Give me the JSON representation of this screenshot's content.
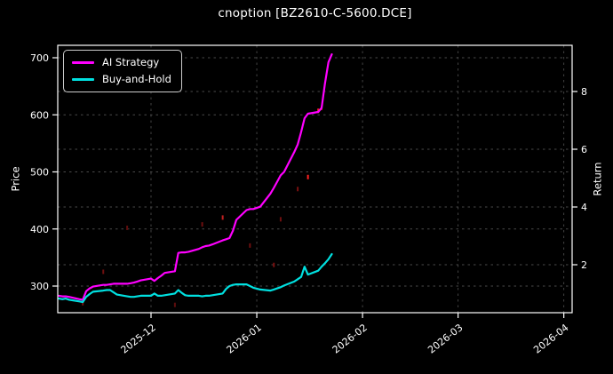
{
  "chart_data": {
    "type": "line",
    "title": "cnoption [BZ2610-C-5600.DCE]",
    "background": "#000000",
    "grid": true,
    "legend": {
      "position": "upper left",
      "entries": [
        {
          "label": "AI Strategy",
          "color": "#ff00ff"
        },
        {
          "label": "Buy-and-Hold",
          "color": "#00e0e0"
        }
      ]
    },
    "left_axis": {
      "label": "Price",
      "ticks": [
        300,
        400,
        500,
        600,
        700
      ],
      "approx_range": [
        253,
        722
      ]
    },
    "right_axis": {
      "label": "Return",
      "ticks": [
        2,
        4,
        6,
        8
      ],
      "approx_range": [
        0.35,
        9.7
      ]
    },
    "x_axis": {
      "ticks": [
        "2025-12",
        "2026-01",
        "2026-02",
        "2026-03",
        "2026-04"
      ],
      "approx_range": [
        "2025-11-03",
        "2026-04-03"
      ]
    },
    "dates": [
      "2025-11-04",
      "2025-11-05",
      "2025-11-06",
      "2025-11-07",
      "2025-11-10",
      "2025-11-11",
      "2025-11-12",
      "2025-11-13",
      "2025-11-14",
      "2025-11-17",
      "2025-11-18",
      "2025-11-19",
      "2025-11-20",
      "2025-11-21",
      "2025-11-24",
      "2025-11-25",
      "2025-11-26",
      "2025-11-27",
      "2025-11-28",
      "2025-12-01",
      "2025-12-02",
      "2025-12-03",
      "2025-12-04",
      "2025-12-05",
      "2025-12-08",
      "2025-12-09",
      "2025-12-10",
      "2025-12-11",
      "2025-12-12",
      "2025-12-15",
      "2025-12-16",
      "2025-12-17",
      "2025-12-18",
      "2025-12-19",
      "2025-12-22",
      "2025-12-23",
      "2025-12-24",
      "2025-12-25",
      "2025-12-26",
      "2025-12-29",
      "2025-12-30",
      "2025-12-31",
      "2026-01-02",
      "2026-01-05",
      "2026-01-06",
      "2026-01-07",
      "2026-01-08",
      "2026-01-09",
      "2026-01-12",
      "2026-01-13",
      "2026-01-14",
      "2026-01-15",
      "2026-01-16",
      "2026-01-19",
      "2026-01-20",
      "2026-01-21",
      "2026-01-22",
      "2026-01-23"
    ],
    "series": [
      {
        "name": "AI Strategy",
        "color": "#ff00ff",
        "axis": "price",
        "values": [
          283,
          282,
          282,
          281,
          277,
          276,
          291,
          296,
          299,
          302,
          302,
          303,
          304,
          304,
          304,
          305,
          306,
          308,
          310,
          313,
          309,
          314,
          318,
          323,
          326,
          358,
          359,
          359,
          360,
          365,
          368,
          370,
          371,
          373,
          380,
          382,
          384,
          397,
          416,
          433,
          435,
          435,
          439,
          462,
          472,
          483,
          494,
          500,
          535,
          548,
          570,
          594,
          602,
          605,
          612,
          655,
          692,
          706
        ]
      },
      {
        "name": "Buy-and-Hold",
        "color": "#00e0e0",
        "axis": "price",
        "values": [
          278,
          277,
          278,
          276,
          273,
          272,
          281,
          286,
          290,
          292,
          293,
          293,
          289,
          285,
          282,
          281,
          281,
          282,
          283,
          283,
          287,
          283,
          283,
          284,
          287,
          293,
          288,
          284,
          283,
          283,
          282,
          283,
          283,
          284,
          287,
          295,
          300,
          302,
          303,
          303,
          300,
          297,
          294,
          292,
          294,
          296,
          298,
          301,
          308,
          312,
          316,
          334,
          320,
          327,
          334,
          340,
          347,
          356
        ]
      }
    ],
    "markers": [
      {
        "date": "2025-11-11",
        "price": 270,
        "color": "#7a1010"
      },
      {
        "date": "2025-11-17",
        "price": 325,
        "color": "#6e0f0f"
      },
      {
        "date": "2025-11-24",
        "price": 402,
        "color": "#5f0d0d"
      },
      {
        "date": "2025-12-08",
        "price": 267,
        "color": "#5f0d0d"
      },
      {
        "date": "2025-12-16",
        "price": 408,
        "color": "#6e0f0f"
      },
      {
        "date": "2025-12-22",
        "price": 420,
        "color": "#c22020"
      },
      {
        "date": "2025-12-30",
        "price": 371,
        "color": "#6e0f0f"
      },
      {
        "date": "2026-01-06",
        "price": 337,
        "color": "#7a1010"
      },
      {
        "date": "2026-01-08",
        "price": 417,
        "color": "#6e0f0f"
      },
      {
        "date": "2026-01-13",
        "price": 470,
        "color": "#7a1010"
      },
      {
        "date": "2026-01-16",
        "price": 491,
        "color": "#ff2020"
      },
      {
        "date": "2026-01-19",
        "price": 607,
        "color": "#ff2020"
      },
      {
        "date": "2026-01-20",
        "price": 612,
        "color": "#a01515"
      }
    ]
  }
}
